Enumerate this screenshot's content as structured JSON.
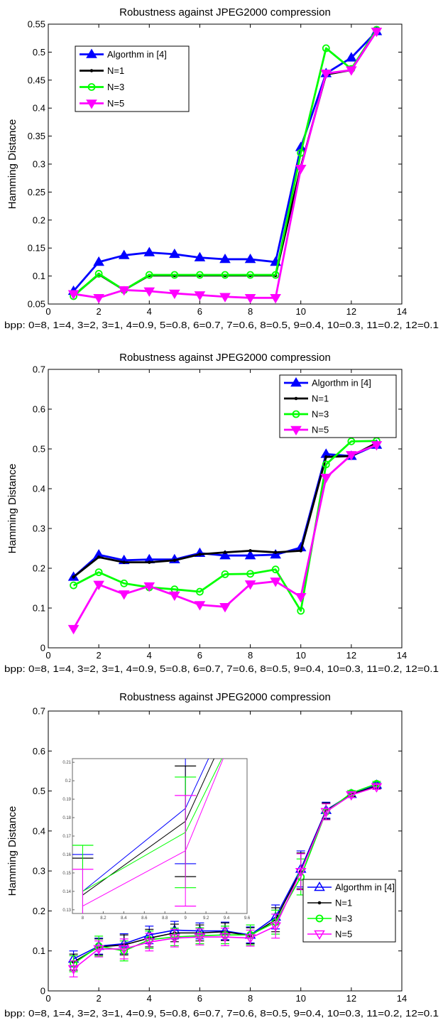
{
  "colors": {
    "alg": "#0000ff",
    "n1": "#000000",
    "n3": "#00ff00",
    "n5": "#ff00ff"
  },
  "chart_data": [
    {
      "type": "line",
      "title": "Robustness against JPEG2000 compression",
      "xlabel": "bpp: 0=8, 1=4, 3=2, 3=1, 4=0.9, 5=0.8, 6=0.7, 7=0.6, 8=0.5, 9=0.4, 10=0.3, 11=0.2, 12=0.1",
      "ylabel": "Hamming Distance",
      "xlim": [
        0,
        14
      ],
      "ylim": [
        0.05,
        0.55
      ],
      "xticks": [
        "0",
        "2",
        "4",
        "6",
        "8",
        "10",
        "12",
        "14"
      ],
      "yticks": [
        "0.05",
        "0.1",
        "0.15",
        "0.2",
        "0.25",
        "0.3",
        "0.35",
        "0.4",
        "0.45",
        "0.5",
        "0.55"
      ],
      "legend": "top-left",
      "grid": false,
      "x": [
        1,
        2,
        3,
        4,
        5,
        6,
        7,
        8,
        9,
        10,
        11,
        12,
        13
      ],
      "series": [
        {
          "name": "Algorthm in [4]",
          "color": "alg",
          "marker": "triangle-up",
          "values": [
            0.073,
            0.125,
            0.137,
            0.142,
            0.139,
            0.133,
            0.13,
            0.13,
            0.125,
            0.33,
            0.462,
            0.49,
            0.537
          ]
        },
        {
          "name": "N=1",
          "color": "n1",
          "marker": "dot",
          "values": [
            0.065,
            0.103,
            0.075,
            0.101,
            0.101,
            0.101,
            0.101,
            0.101,
            0.101,
            0.295,
            0.46,
            0.468,
            0.538
          ]
        },
        {
          "name": "N=3",
          "color": "n3",
          "marker": "circle",
          "values": [
            0.064,
            0.104,
            0.075,
            0.102,
            0.102,
            0.102,
            0.102,
            0.102,
            0.102,
            0.32,
            0.507,
            0.47,
            0.54
          ]
        },
        {
          "name": "N=5",
          "color": "n5",
          "marker": "triangle-down",
          "values": [
            0.068,
            0.061,
            0.075,
            0.073,
            0.069,
            0.066,
            0.063,
            0.061,
            0.061,
            0.292,
            0.462,
            0.468,
            0.537
          ]
        }
      ]
    },
    {
      "type": "line",
      "title": "Robustness against JPEG2000 compression",
      "xlabel": "bpp: 0=8, 1=4, 3=2, 3=1, 4=0.9, 5=0.8, 6=0.7, 7=0.6, 8=0.5, 9=0.4, 10=0.3, 11=0.2, 12=0.1",
      "ylabel": "Hamming Distance",
      "xlim": [
        0,
        14
      ],
      "ylim": [
        0,
        0.7
      ],
      "xticks": [
        "0",
        "2",
        "4",
        "6",
        "8",
        "10",
        "12",
        "14"
      ],
      "yticks": [
        "0",
        "0.1",
        "0.2",
        "0.3",
        "0.4",
        "0.5",
        "0.6",
        "0.7"
      ],
      "legend": "top-right",
      "grid": false,
      "x": [
        1,
        2,
        3,
        4,
        5,
        6,
        7,
        8,
        9,
        10,
        11,
        12,
        13
      ],
      "series": [
        {
          "name": "Algorthm in [4]",
          "color": "alg",
          "marker": "triangle-up",
          "values": [
            0.178,
            0.234,
            0.22,
            0.222,
            0.222,
            0.238,
            0.232,
            0.232,
            0.234,
            0.252,
            0.487,
            0.482,
            0.51
          ]
        },
        {
          "name": "N=1",
          "color": "n1",
          "marker": "dot",
          "values": [
            0.178,
            0.228,
            0.215,
            0.215,
            0.22,
            0.235,
            0.24,
            0.244,
            0.24,
            0.244,
            0.48,
            0.482,
            0.515
          ]
        },
        {
          "name": "N=3",
          "color": "n3",
          "marker": "circle",
          "values": [
            0.157,
            0.19,
            0.162,
            0.152,
            0.147,
            0.141,
            0.185,
            0.186,
            0.197,
            0.093,
            0.461,
            0.519,
            0.52
          ]
        },
        {
          "name": "N=5",
          "color": "n5",
          "marker": "triangle-down",
          "values": [
            0.048,
            0.159,
            0.135,
            0.155,
            0.132,
            0.108,
            0.103,
            0.16,
            0.167,
            0.128,
            0.428,
            0.485,
            0.51
          ]
        }
      ]
    },
    {
      "type": "line",
      "title": "Robustness against JPEG2000 compression",
      "xlabel": "bpp: 0=8, 1=4, 3=2, 3=1, 4=0.9, 5=0.8, 6=0.7, 7=0.6, 8=0.5, 9=0.4, 10=0.3, 11=0.2, 12=0.1",
      "ylabel": "Hamming Distance",
      "xlim": [
        0,
        14
      ],
      "ylim": [
        0,
        0.7
      ],
      "xticks": [
        "0",
        "2",
        "4",
        "6",
        "8",
        "10",
        "12",
        "14"
      ],
      "yticks": [
        "0",
        "0.1",
        "0.2",
        "0.3",
        "0.4",
        "0.5",
        "0.6",
        "0.7"
      ],
      "legend": "bottom-right",
      "grid": false,
      "error_bars": true,
      "x": [
        1,
        2,
        3,
        4,
        5,
        6,
        7,
        8,
        9,
        10,
        11,
        12,
        13
      ],
      "series": [
        {
          "name": "Algorthm in [4]",
          "color": "alg",
          "marker": "triangle-up-open",
          "values": [
            0.08,
            0.112,
            0.118,
            0.14,
            0.152,
            0.15,
            0.15,
            0.14,
            0.185,
            0.305,
            0.452,
            0.492,
            0.515
          ],
          "err": [
            0.02,
            0.02,
            0.025,
            0.022,
            0.022,
            0.02,
            0.022,
            0.02,
            0.03,
            0.045,
            0.02,
            0.006,
            0.006
          ]
        },
        {
          "name": "N=1",
          "color": "n1",
          "marker": "dot",
          "values": [
            0.072,
            0.11,
            0.115,
            0.132,
            0.145,
            0.145,
            0.148,
            0.138,
            0.178,
            0.3,
            0.45,
            0.492,
            0.512
          ],
          "err": [
            0.02,
            0.02,
            0.025,
            0.022,
            0.022,
            0.02,
            0.022,
            0.02,
            0.03,
            0.045,
            0.02,
            0.006,
            0.006
          ]
        },
        {
          "name": "N=3",
          "color": "n3",
          "marker": "circle-open",
          "values": [
            0.068,
            0.112,
            0.1,
            0.128,
            0.135,
            0.138,
            0.14,
            0.14,
            0.172,
            0.285,
            0.448,
            0.495,
            0.518
          ],
          "err": [
            0.02,
            0.025,
            0.025,
            0.022,
            0.022,
            0.02,
            0.022,
            0.025,
            0.03,
            0.045,
            0.02,
            0.006,
            0.006
          ]
        },
        {
          "name": "N=5",
          "color": "n5",
          "marker": "triangle-down-open",
          "values": [
            0.055,
            0.105,
            0.105,
            0.122,
            0.132,
            0.135,
            0.135,
            0.132,
            0.162,
            0.298,
            0.448,
            0.49,
            0.51
          ],
          "err": [
            0.02,
            0.02,
            0.025,
            0.022,
            0.022,
            0.02,
            0.022,
            0.02,
            0.03,
            0.045,
            0.02,
            0.006,
            0.006
          ]
        }
      ],
      "inset": {
        "xlim": [
          7.9,
          9.6
        ],
        "ylim": [
          0.128,
          0.212
        ],
        "xticks": [
          "8",
          "8.2",
          "8.4",
          "8.6",
          "8.8",
          "9",
          "9.2",
          "9.4",
          "9.6"
        ],
        "yticks": [
          "0.13",
          "0.14",
          "0.15",
          "0.16",
          "0.17",
          "0.18",
          "0.19",
          "0.2",
          "0.21"
        ]
      }
    }
  ]
}
